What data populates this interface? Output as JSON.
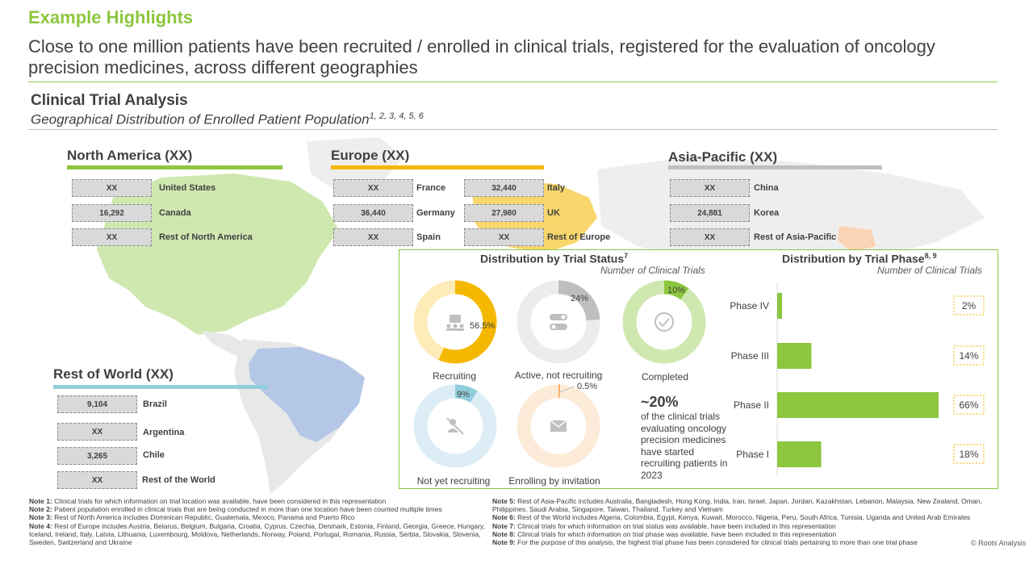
{
  "header": {
    "kicker": "Example Highlights",
    "headline": "Close to one million patients have been recruited / enrolled in clinical trials, registered for the evaluation of oncology precision medicines, across different geographies"
  },
  "section": {
    "title": "Clinical Trial Analysis",
    "subtitle": "Geographical Distribution of Enrolled Patient Population",
    "subtitle_refs": "1, 2, 3, 4, 5, 6"
  },
  "regions": {
    "north_america": {
      "title": "North America (XX)",
      "color": "#8dc63f",
      "items": [
        {
          "value": "XX",
          "label": "United States"
        },
        {
          "value": "16,292",
          "label": "Canada"
        },
        {
          "value": "XX",
          "label": "Rest of North America"
        }
      ]
    },
    "europe": {
      "title": "Europe (XX)",
      "color": "#f5b800",
      "items": [
        {
          "value": "XX",
          "label": "France"
        },
        {
          "value": "36,440",
          "label": "Germany"
        },
        {
          "value": "XX",
          "label": "Spain"
        },
        {
          "value": "32,440",
          "label": "Italy"
        },
        {
          "value": "27,980",
          "label": "UK"
        },
        {
          "value": "XX",
          "label": "Rest of Europe"
        }
      ]
    },
    "asia_pacific": {
      "title": "Asia-Pacific (XX)",
      "color": "#bfbfbf",
      "items": [
        {
          "value": "XX",
          "label": "China"
        },
        {
          "value": "24,881",
          "label": "Korea"
        },
        {
          "value": "XX",
          "label": "Rest of Asia-Pacific"
        }
      ]
    },
    "rest_of_world": {
      "title": "Rest of World (XX)",
      "color": "#92cddc",
      "items": [
        {
          "value": "9,104",
          "label": "Brazil"
        },
        {
          "value": "XX",
          "label": "Argentina"
        },
        {
          "value": "3,265",
          "label": "Chile"
        },
        {
          "value": "XX",
          "label": "Rest of the World"
        }
      ]
    }
  },
  "trial_status": {
    "title": "Distribution by Trial Status",
    "title_ref": "7",
    "subtitle": "Number of Clinical Trials",
    "callout_big": "~20%",
    "callout_text": "of the clinical trials evaluating oncology precision medicines have started recruiting patients in 2023",
    "donuts": [
      {
        "label": "Recruiting",
        "pct": "56.5%",
        "value": 56.5,
        "color": "#f5b800",
        "track": "#fdebb8",
        "icon": "people-presentation-icon"
      },
      {
        "label": "Active, not recruiting",
        "pct": "24%",
        "value": 24,
        "color": "#bfbfbf",
        "track": "#ececec",
        "icon": "toggle-icon"
      },
      {
        "label": "Completed",
        "pct": "10%",
        "value": 10,
        "color": "#8dc63f",
        "track": "#cfe8b0",
        "icon": "check-circle-icon"
      },
      {
        "label": "Not yet recruiting",
        "pct": "9%",
        "value": 9,
        "color": "#92cddc",
        "track": "#dcedf6",
        "icon": "no-users-icon"
      },
      {
        "label": "Enrolling by invitation",
        "pct": "0.5%",
        "value": 0.5,
        "color": "#f5a04a",
        "track": "#fdebd9",
        "icon": "envelope-icon"
      }
    ]
  },
  "trial_phase": {
    "title": "Distribution by Trial Phase",
    "title_ref": "8, 9",
    "subtitle": "Number of Clinical Trials",
    "chart_data": {
      "type": "bar",
      "categories": [
        "Phase IV",
        "Phase III",
        "Phase II",
        "Phase I"
      ],
      "values": [
        2,
        14,
        66,
        18
      ],
      "labels": [
        "2%",
        "14%",
        "66%",
        "18%"
      ],
      "color": "#8dc63f"
    }
  },
  "notes_left": [
    {
      "key": "Note 1:",
      "text": "Clinical trials for which information on trial location was available, have been considered in this representation"
    },
    {
      "key": "Note 2:",
      "text": "Patient population enrolled in clinical trials that are being conducted in more than one location have been counted multiple times"
    },
    {
      "key": "Note 3:",
      "text": "Rest of North America includes Dominican Republic, Guatemala, Mexico, Panama and Puerto Rico"
    },
    {
      "key": "Note 4:",
      "text": "Rest of Europe includes Austria, Belarus, Belgium, Bulgaria, Croatia, Cyprus, Czechia, Denmark, Estonia, Finland, Georgia, Greece, Hungary, Iceland, Ireland, Italy, Latvia, Lithuania, Luxembourg, Moldova, Netherlands, Norway, Poland, Portugal, Romania, Russia, Serbia, Slovakia, Slovenia, Sweden, Switzerland and Ukraine"
    }
  ],
  "notes_right": [
    {
      "key": "Note 5:",
      "text": "Rest of Asia-Pacific includes Australia, Bangladesh, Hong Kong, India, Iran, Israel, Japan, Jordan, Kazakhstan, Lebanon, Malaysia, New Zealand, Oman, Philippines, Saudi Arabia, Singapore, Taiwan, Thailand, Turkey and Vietnam"
    },
    {
      "key": "Note 6:",
      "text": "Rest of the World includes Algeria, Colombia, Egypt, Kenya, Kuwait, Morocco, Nigeria, Peru, South Africa, Tunisia, Uganda and United Arab Emirates"
    },
    {
      "key": "Note 7:",
      "text": "Clinical trials for which information on trial status was available, have been included in this representation"
    },
    {
      "key": "Note 8:",
      "text": "Clinical trials for which information on trial phase was available, have been included in this representation"
    },
    {
      "key": "Note 9:",
      "text": "For the purpose of this analysis, the highest trial phase has been considered for clinical trials pertaining to more than one trial phase"
    }
  ],
  "copyright": "© Roots Analysis"
}
